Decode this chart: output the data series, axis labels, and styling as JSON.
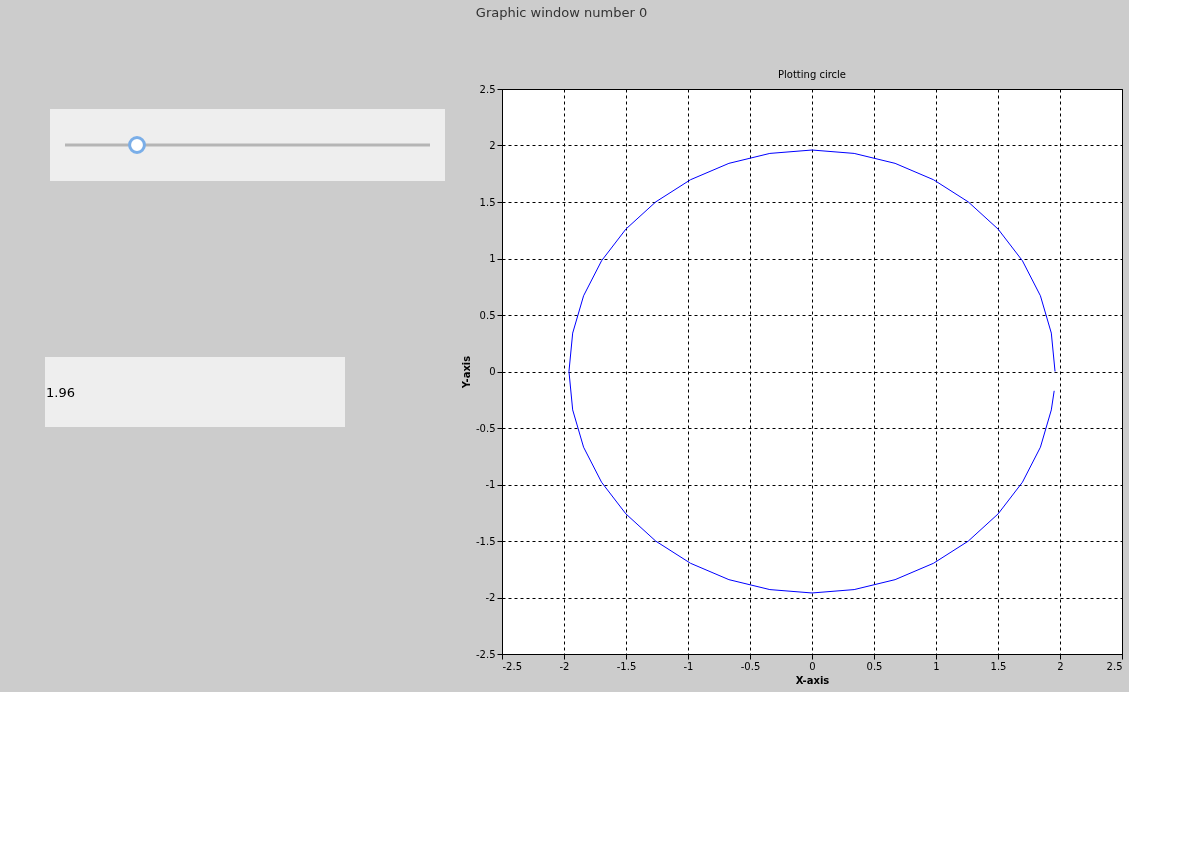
{
  "chart_data": {
    "type": "line",
    "title": "Plotting circle",
    "xlabel": "X-axis",
    "ylabel": "Y-axis",
    "annotations": [
      "Graphic window number 0",
      "1.96"
    ],
    "series": [
      {
        "color": "#0000ff",
        "x": [
          1.96,
          1.93,
          1.842,
          1.697,
          1.501,
          1.26,
          0.98,
          0.67,
          0.34,
          0,
          -0.34,
          -0.67,
          -0.98,
          -1.26,
          -1.501,
          -1.697,
          -1.842,
          -1.93,
          -1.96,
          -1.93,
          -1.842,
          -1.697,
          -1.501,
          -1.26,
          -0.98,
          -0.67,
          -0.34,
          0,
          0.34,
          0.67,
          0.98,
          1.26,
          1.501,
          1.697,
          1.842,
          1.93,
          1.953
        ],
        "values": [
          0,
          0.34,
          0.67,
          0.98,
          1.26,
          1.501,
          1.697,
          1.842,
          1.93,
          1.96,
          1.93,
          1.842,
          1.697,
          1.501,
          1.26,
          0.98,
          0.67,
          0.34,
          0,
          -0.34,
          -0.67,
          -0.98,
          -1.26,
          -1.501,
          -1.697,
          -1.842,
          -1.93,
          -1.96,
          -1.93,
          -1.842,
          -1.697,
          -1.501,
          -1.26,
          -0.98,
          -0.67,
          -0.34,
          -0.171
        ]
      }
    ],
    "xlim": [
      -2.5,
      2.5
    ],
    "xticks": [
      -2.5,
      -2,
      -1.5,
      -1,
      -0.5,
      0,
      0.5,
      1,
      1.5,
      2,
      2.5
    ],
    "ylim": [
      -2.5,
      2.5
    ],
    "yticks": [
      -2.5,
      -2,
      -1.5,
      -1,
      -0.5,
      0,
      0.5,
      1,
      1.5,
      2,
      2.5
    ],
    "grid": true,
    "line_style": "solid",
    "marker": "none"
  }
}
